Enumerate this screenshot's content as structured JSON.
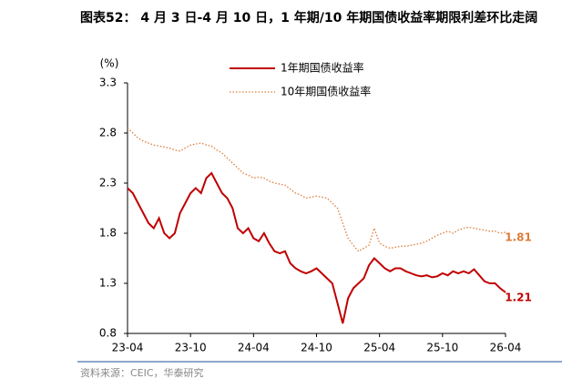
{
  "chart_data": {
    "type": "line",
    "title": "图表52： 4 月 3 日-4 月 10 日，1 年期/10 年期国债收益率期限利差环比走阔",
    "y_label": "(%)",
    "source": "资料来源：CEIC，华泰研究",
    "categories": [
      "23-04",
      null,
      null,
      null,
      null,
      null,
      null,
      null,
      null,
      null,
      null,
      null,
      "23-10",
      null,
      null,
      null,
      null,
      null,
      null,
      null,
      null,
      null,
      null,
      null,
      "24-04",
      null,
      null,
      null,
      null,
      null,
      null,
      null,
      null,
      null,
      null,
      null,
      "24-10",
      null,
      null,
      null,
      null,
      null,
      null,
      null,
      null,
      null,
      null,
      null,
      "25-04",
      null,
      null,
      null,
      null,
      null,
      null,
      null,
      null,
      null,
      null,
      null,
      "25-10",
      null,
      null,
      null,
      null,
      null,
      null,
      null,
      null,
      null,
      null,
      null,
      "26-04"
    ],
    "series": [
      {
        "name": "1年期国债收益率",
        "color": "#c00000",
        "style": "solid",
        "values": [
          2.25,
          2.2,
          2.1,
          2.0,
          1.9,
          1.85,
          1.95,
          1.8,
          1.75,
          1.8,
          2.0,
          2.1,
          2.2,
          2.25,
          2.2,
          2.35,
          2.4,
          2.3,
          2.2,
          2.15,
          2.05,
          1.85,
          1.8,
          1.85,
          1.75,
          1.72,
          1.8,
          1.7,
          1.62,
          1.6,
          1.62,
          1.5,
          1.45,
          1.42,
          1.4,
          1.42,
          1.45,
          1.4,
          1.35,
          1.3,
          1.1,
          0.9,
          1.15,
          1.25,
          1.3,
          1.35,
          1.48,
          1.55,
          1.5,
          1.45,
          1.42,
          1.45,
          1.45,
          1.42,
          1.4,
          1.38,
          1.37,
          1.38,
          1.36,
          1.37,
          1.4,
          1.38,
          1.42,
          1.4,
          1.42,
          1.4,
          1.44,
          1.38,
          1.32,
          1.3,
          1.3,
          1.25,
          1.21
        ]
      },
      {
        "name": "10年期国债收益率",
        "color": "#e07b39",
        "style": "dotted",
        "values": [
          2.85,
          2.8,
          2.75,
          2.72,
          2.7,
          2.68,
          2.67,
          2.66,
          2.65,
          2.63,
          2.62,
          2.65,
          2.68,
          2.69,
          2.7,
          2.68,
          2.67,
          2.63,
          2.6,
          2.55,
          2.5,
          2.45,
          2.4,
          2.38,
          2.35,
          2.36,
          2.35,
          2.32,
          2.3,
          2.29,
          2.28,
          2.24,
          2.2,
          2.18,
          2.15,
          2.16,
          2.17,
          2.16,
          2.15,
          2.1,
          2.05,
          1.9,
          1.75,
          1.68,
          1.62,
          1.65,
          1.68,
          1.85,
          1.7,
          1.67,
          1.65,
          1.66,
          1.67,
          1.67,
          1.68,
          1.69,
          1.7,
          1.72,
          1.75,
          1.78,
          1.8,
          1.82,
          1.8,
          1.83,
          1.85,
          1.86,
          1.85,
          1.84,
          1.83,
          1.82,
          1.82,
          1.8,
          1.81
        ]
      }
    ],
    "ylim": [
      0.8,
      3.3
    ],
    "yticks": [
      0.8,
      1.3,
      1.8,
      2.3,
      2.8,
      3.3
    ]
  }
}
